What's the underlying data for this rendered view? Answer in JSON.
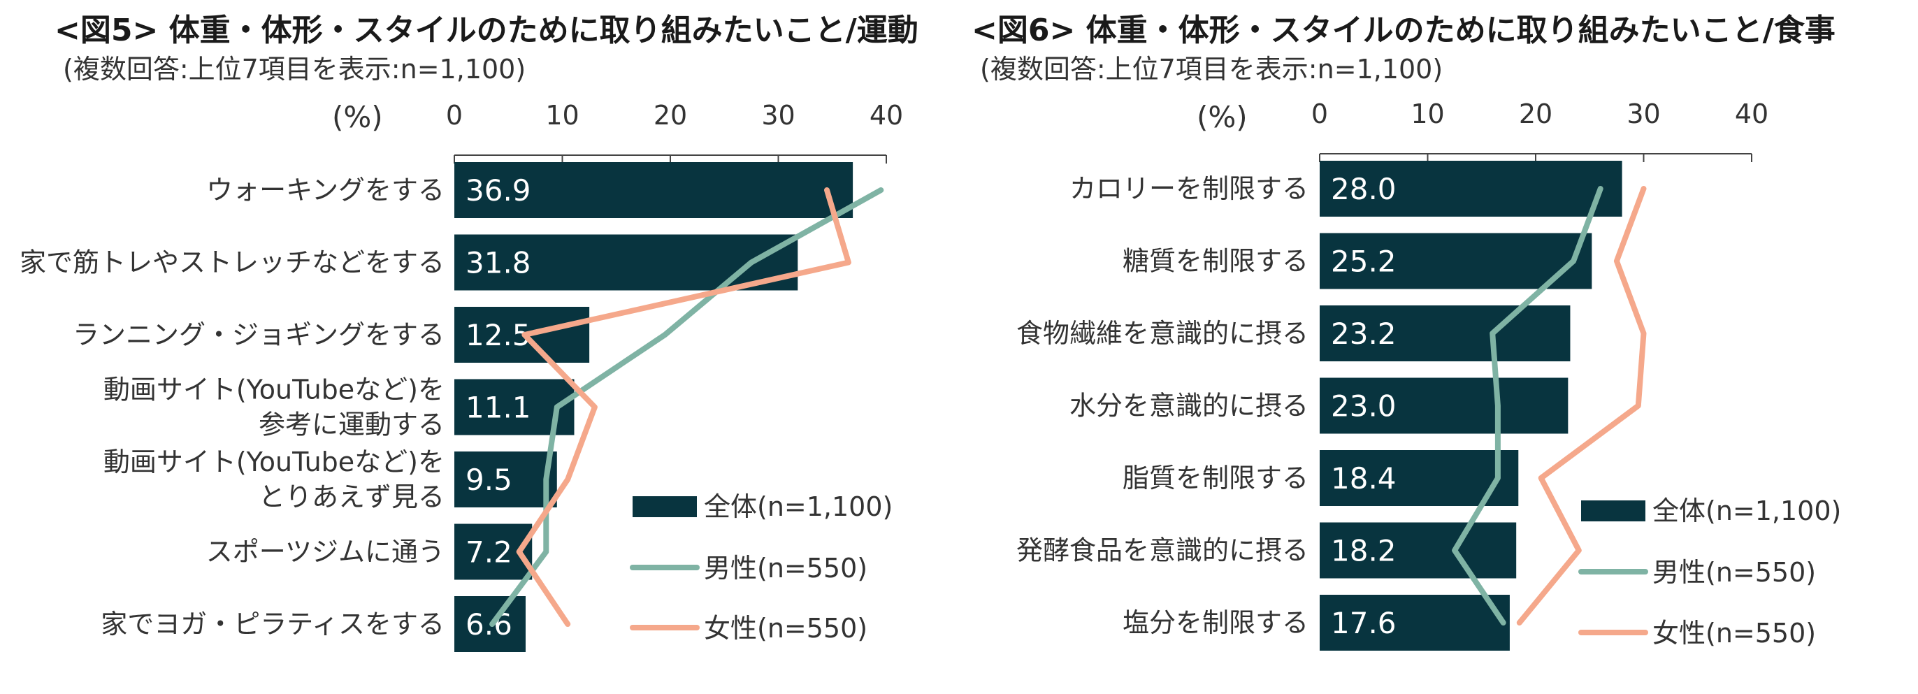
{
  "colors": {
    "total": "#08343f",
    "male": "#7fb3a4",
    "female": "#f5a88b"
  },
  "chart_data": [
    {
      "type": "bar",
      "title": "<図5> 体重・体形・スタイルのために取り組みたいこと/運動",
      "subtitle": "(複数回答:上位7項目を表示:n=1,100)",
      "unit": "(%)",
      "xlim": [
        0,
        40
      ],
      "ticks": [
        "0",
        "10",
        "20",
        "30",
        "40"
      ],
      "categories": [
        [
          "ウォーキングをする"
        ],
        [
          "家で筋トレやストレッチなどをする"
        ],
        [
          "ランニング・ジョギングをする"
        ],
        [
          "動画サイト(YouTubeなど)を",
          "参考に運動する"
        ],
        [
          "動画サイト(YouTubeなど)を",
          "とりあえず見る"
        ],
        [
          "スポーツジムに通う"
        ],
        [
          "家でヨガ・ピラティスをする"
        ]
      ],
      "series": [
        {
          "name": "全体(n=1,100)",
          "kind": "bar",
          "values": [
            36.9,
            31.8,
            12.5,
            11.1,
            9.5,
            7.2,
            6.6
          ]
        },
        {
          "name": "男性(n=550)",
          "kind": "line",
          "values": [
            39.5,
            27.5,
            19.5,
            9.5,
            8.5,
            8.5,
            3.5
          ]
        },
        {
          "name": "女性(n=550)",
          "kind": "line",
          "values": [
            34.5,
            36.5,
            6.5,
            13.0,
            10.5,
            6.0,
            10.5
          ]
        }
      ],
      "value_labels": [
        "36.9",
        "31.8",
        "12.5",
        "11.1",
        "9.5",
        "7.2",
        "6.6"
      ],
      "legend": "bottom-right",
      "grid": false
    },
    {
      "type": "bar",
      "title": "<図6> 体重・体形・スタイルのために取り組みたいこと/食事",
      "subtitle": "(複数回答:上位7項目を表示:n=1,100)",
      "unit": "(%)",
      "xlim": [
        0,
        40
      ],
      "ticks": [
        "0",
        "10",
        "20",
        "30",
        "40"
      ],
      "categories": [
        [
          "カロリーを制限する"
        ],
        [
          "糖質を制限する"
        ],
        [
          "食物繊維を意識的に摂る"
        ],
        [
          "水分を意識的に摂る"
        ],
        [
          "脂質を制限する"
        ],
        [
          "発酵食品を意識的に摂る"
        ],
        [
          "塩分を制限する"
        ]
      ],
      "series": [
        {
          "name": "全体(n=1,100)",
          "kind": "bar",
          "values": [
            28.0,
            25.2,
            23.2,
            23.0,
            18.4,
            18.2,
            17.6
          ]
        },
        {
          "name": "男性(n=550)",
          "kind": "line",
          "values": [
            26.0,
            23.5,
            16.0,
            16.5,
            16.5,
            12.5,
            17.0
          ]
        },
        {
          "name": "女性(n=550)",
          "kind": "line",
          "values": [
            30.0,
            27.5,
            30.0,
            29.5,
            20.5,
            24.0,
            18.5
          ]
        }
      ],
      "value_labels": [
        "28.0",
        "25.2",
        "23.2",
        "23.0",
        "18.4",
        "18.2",
        "17.6"
      ],
      "legend": "bottom-right",
      "grid": false
    }
  ]
}
